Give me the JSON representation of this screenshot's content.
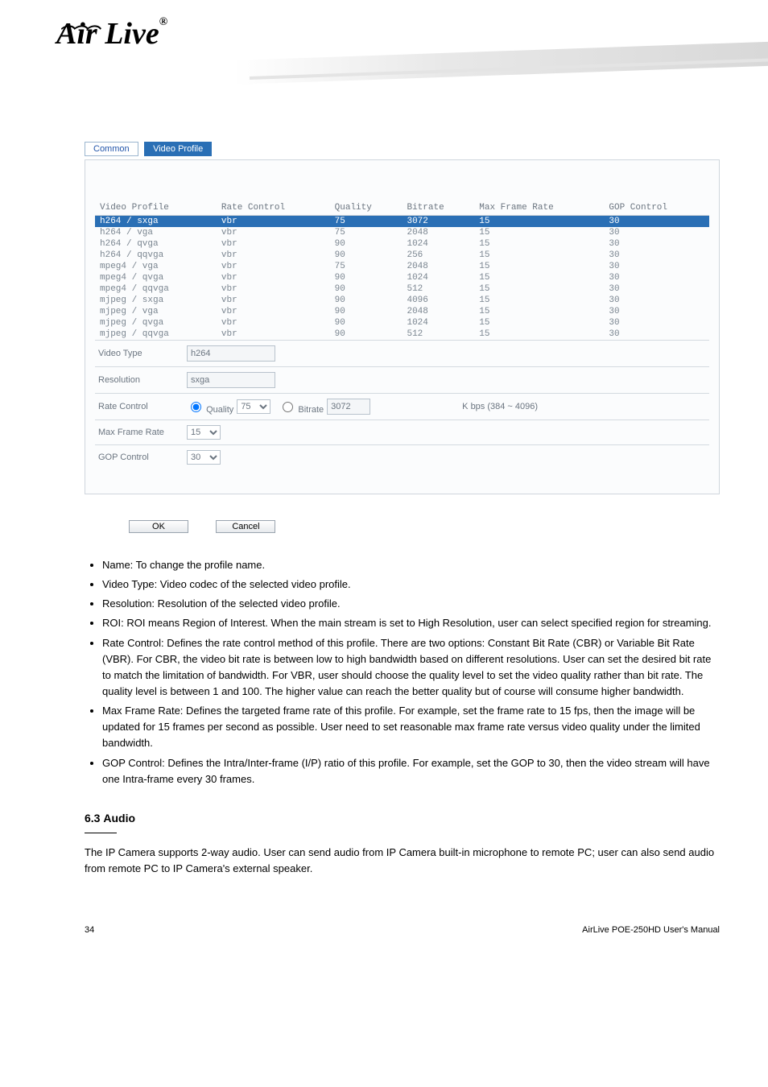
{
  "logo_text": "Air Live",
  "logo_reg": "®",
  "tabs": {
    "common": "Common",
    "video_profile": "Video Profile"
  },
  "table": {
    "headers": [
      "Video Profile",
      "Rate Control",
      "Quality",
      "Bitrate",
      "Max Frame Rate",
      "GOP Control"
    ],
    "rows": [
      [
        "h264 / sxga",
        "vbr",
        "75",
        "3072",
        "15",
        "30"
      ],
      [
        "h264 / vga",
        "vbr",
        "75",
        "2048",
        "15",
        "30"
      ],
      [
        "h264 / qvga",
        "vbr",
        "90",
        "1024",
        "15",
        "30"
      ],
      [
        "h264 / qqvga",
        "vbr",
        "90",
        "256",
        "15",
        "30"
      ],
      [
        "mpeg4 / vga",
        "vbr",
        "75",
        "2048",
        "15",
        "30"
      ],
      [
        "mpeg4 / qvga",
        "vbr",
        "90",
        "1024",
        "15",
        "30"
      ],
      [
        "mpeg4 / qqvga",
        "vbr",
        "90",
        "512",
        "15",
        "30"
      ],
      [
        "mjpeg / sxga",
        "vbr",
        "90",
        "4096",
        "15",
        "30"
      ],
      [
        "mjpeg / vga",
        "vbr",
        "90",
        "2048",
        "15",
        "30"
      ],
      [
        "mjpeg / qvga",
        "vbr",
        "90",
        "1024",
        "15",
        "30"
      ],
      [
        "mjpeg / qqvga",
        "vbr",
        "90",
        "512",
        "15",
        "30"
      ]
    ],
    "selected_colors": {
      "bg": "#2a6fb5",
      "fg": "#ffffff"
    }
  },
  "form": {
    "video_type_label": "Video Type",
    "video_type_value": "h264",
    "resolution_label": "Resolution",
    "resolution_value": "sxga",
    "rate_control_label": "Rate Control",
    "quality_radio": "Quality",
    "quality_value": "75",
    "bitrate_radio": "Bitrate",
    "bitrate_value": "3072",
    "bitrate_hint": "K bps (384 ~ 4096)",
    "max_frame_label": "Max Frame Rate",
    "max_frame_value": "15",
    "gop_label": "GOP Control",
    "gop_value": "30"
  },
  "buttons": {
    "ok": "OK",
    "cancel": "Cancel"
  },
  "text": {
    "bullet_name": "Name: To change the profile name.",
    "bullet_videotype": "Video Type: Video codec of the selected video profile.",
    "bullet_resolution": "Resolution: Resolution of the selected video profile.",
    "bullet_roi": "ROI: ROI means Region of Interest. When the main stream is set to High Resolution, user can select specified region for streaming.",
    "bullet_rate": "Rate Control: Defines the rate control method of this profile. There are two options: Constant Bit Rate (CBR) or Variable Bit Rate (VBR). For CBR, the video bit rate is between low to high bandwidth based on different resolutions. User can set the desired bit rate to match the limitation of bandwidth. For VBR, user should choose the quality level to set the video quality rather than bit rate. The quality level is between 1 and 100. The higher value can reach the better quality but of course will consume higher bandwidth.",
    "bullet_maxframe": "Max Frame Rate: Defines the targeted frame rate of this profile. For example, set the frame rate to 15 fps, then the image will be updated for 15 frames per second as possible. User need to set reasonable max frame rate versus video quality under the limited bandwidth.",
    "bullet_gop": "GOP Control: Defines the Intra/Inter-frame (I/P) ratio of this profile. For example, set the GOP to 30, then the video stream will have one Intra-frame every 30 frames."
  },
  "section": {
    "number": "6.3",
    "title": "Audio"
  },
  "section_intro": "The IP Camera supports 2-way audio. User can send audio from IP Camera built-in microphone to remote PC; user can also send audio from remote PC to IP Camera's external speaker.",
  "footer": {
    "page": "34",
    "manual": "AirLive POE-250HD User's Manual"
  }
}
